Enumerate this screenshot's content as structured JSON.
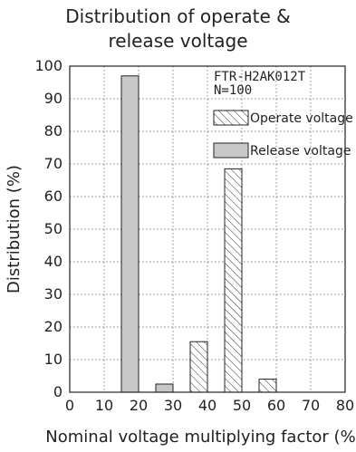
{
  "chart_data": {
    "type": "bar",
    "title_line1": "Distribution of operate &",
    "title_line2": "release voltage",
    "xlabel": "Nominal voltage multiplying factor (%)",
    "ylabel": "Distribution (%)",
    "xlim": [
      0,
      80
    ],
    "ylim": [
      0,
      100
    ],
    "xticks": [
      0,
      10,
      20,
      30,
      40,
      50,
      60,
      70,
      80
    ],
    "yticks": [
      0,
      10,
      20,
      30,
      40,
      50,
      60,
      70,
      80,
      90,
      100
    ],
    "grid": true,
    "annotation_line1": "FTR-H2AK012T",
    "annotation_line2": "N=100",
    "legend_position": "top-right",
    "series": [
      {
        "name": "Operate voltage",
        "fill": "hatched",
        "bars": [
          {
            "x_start": 35,
            "x_end": 40,
            "value": 15.5
          },
          {
            "x_start": 45,
            "x_end": 50,
            "value": 68.5
          },
          {
            "x_start": 55,
            "x_end": 60,
            "value": 4
          }
        ]
      },
      {
        "name": "Release voltage",
        "fill": "#c8c8c8",
        "bars": [
          {
            "x_start": 15,
            "x_end": 20,
            "value": 97
          },
          {
            "x_start": 25,
            "x_end": 30,
            "value": 2.5
          }
        ]
      }
    ]
  }
}
